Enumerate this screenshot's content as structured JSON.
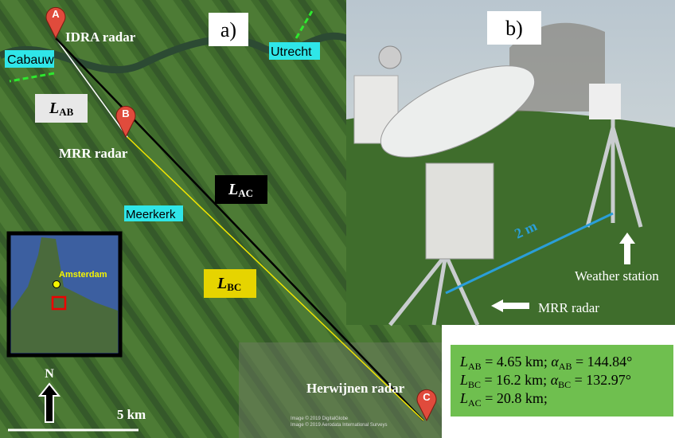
{
  "panel_a": {
    "label": "a)",
    "places": {
      "idra": "IDRA radar",
      "cabauw": "Cabauw",
      "utrecht": "Utrecht",
      "mrr": "MRR radar",
      "meerkerk": "Meerkerk",
      "herwijnen": "Herwijnen radar"
    },
    "markers": [
      "A",
      "B",
      "C"
    ],
    "segments": {
      "ab": {
        "symbol": "L",
        "subscript": "AB"
      },
      "ac": {
        "symbol": "L",
        "subscript": "AC"
      },
      "bc": {
        "symbol": "L",
        "subscript": "BC"
      }
    },
    "inset": {
      "city": "Amsterdam"
    },
    "north": "N",
    "scale": "5 km",
    "credits": [
      "Image © 2019 DigitalGlobe",
      "Image © 2019 Aerodata International Surveys"
    ]
  },
  "panel_b": {
    "label": "b)",
    "distance": "2 m",
    "weather_station": "Weather station",
    "mrr_radar": "MRR radar"
  },
  "info": [
    [
      {
        "symbol": "L",
        "subscript": "AB",
        "text": " = 4.65 km; "
      },
      {
        "symbol": "α",
        "subscript": "AB",
        "text": " = 144.84°"
      }
    ],
    [
      {
        "symbol": "L",
        "subscript": "BC",
        "text": " = 16.2 km; "
      },
      {
        "symbol": "α",
        "subscript": "BC",
        "text": " = 132.97°"
      }
    ],
    [
      {
        "symbol": "L",
        "subscript": "AC",
        "text": " = 20.8 km;"
      }
    ]
  ]
}
